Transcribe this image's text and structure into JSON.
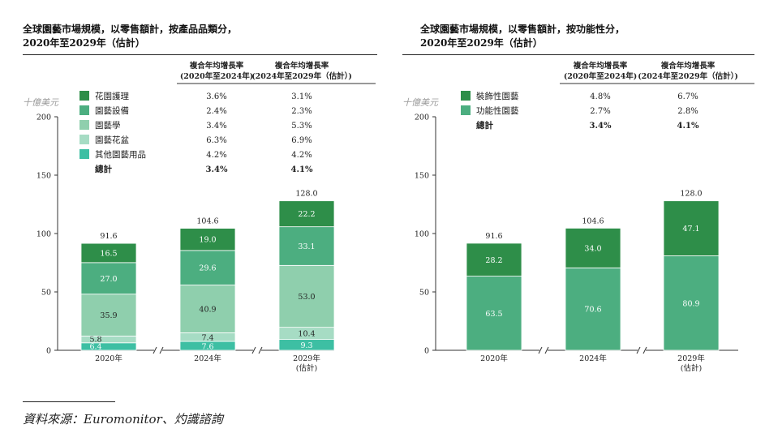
{
  "source_note": "資料來源：Euromonitor、灼識諮詢",
  "chart_data": [
    {
      "type": "bar",
      "stacked": true,
      "title_lines": [
        "全球園藝市場規模，以零售額計，按產品品類分，",
        "2020年至2029年（估計）"
      ],
      "unit_label": "十億美元",
      "y_ticks": [
        "0",
        "50",
        "100",
        "150",
        "200"
      ],
      "ylim": [
        0,
        200
      ],
      "categories": [
        "2020年",
        "2024年",
        "2029年"
      ],
      "category_sublabels": [
        "",
        "",
        "(估計)"
      ],
      "cagr_headers": [
        {
          "line1": "複合年均增長率",
          "line2": "(2020年至2024年)"
        },
        {
          "line1": "複合年均增長率",
          "line2": "(2024年至2029年（估計）)"
        }
      ],
      "series": [
        {
          "name": "其他園藝用品",
          "color": "#3dbfa3",
          "values": [
            6.4,
            7.6,
            9.3
          ],
          "cagr": [
            "4.2%",
            "4.2%"
          ]
        },
        {
          "name": "園藝花盆",
          "color": "#a6dcc4",
          "values": [
            5.8,
            7.4,
            10.4
          ],
          "cagr": [
            "6.3%",
            "6.9%"
          ]
        },
        {
          "name": "園藝學",
          "color": "#8fcfad",
          "values": [
            35.9,
            40.9,
            53.0
          ],
          "cagr": [
            "3.4%",
            "5.3%"
          ]
        },
        {
          "name": "園藝設備",
          "color": "#4cae80",
          "values": [
            27.0,
            29.6,
            33.1
          ],
          "cagr": [
            "2.4%",
            "2.3%"
          ]
        },
        {
          "name": "花園護理",
          "color": "#2e8e49",
          "values": [
            16.5,
            19.0,
            22.2
          ],
          "cagr": [
            "3.6%",
            "3.1%"
          ]
        }
      ],
      "legend_order": [
        "花園護理",
        "園藝設備",
        "園藝學",
        "園藝花盆",
        "其他園藝用品"
      ],
      "total_label": "總計",
      "total_cagr": [
        "3.4%",
        "4.1%"
      ],
      "totals": [
        "91.6",
        "104.6",
        "128.0"
      ]
    },
    {
      "type": "bar",
      "stacked": true,
      "title_lines": [
        "全球園藝市場規模，以零售額計，按功能性分，",
        "2020年至2029年（估計）"
      ],
      "unit_label": "十億美元",
      "y_ticks": [
        "0",
        "50",
        "100",
        "150",
        "200"
      ],
      "ylim": [
        0,
        200
      ],
      "categories": [
        "2020年",
        "2024年",
        "2029年"
      ],
      "category_sublabels": [
        "",
        "",
        "(估計)"
      ],
      "cagr_headers": [
        {
          "line1": "複合年均增長率",
          "line2": "(2020年至2024年)"
        },
        {
          "line1": "複合年均增長率",
          "line2": "(2024年至2029年（估計）)"
        }
      ],
      "series": [
        {
          "name": "功能性園藝",
          "color": "#4cae80",
          "values": [
            63.5,
            70.6,
            80.9
          ],
          "cagr": [
            "2.7%",
            "2.8%"
          ]
        },
        {
          "name": "裝飾性園藝",
          "color": "#2e8e49",
          "values": [
            28.2,
            34.0,
            47.1
          ],
          "cagr": [
            "4.8%",
            "6.7%"
          ]
        }
      ],
      "legend_order": [
        "裝飾性園藝",
        "功能性園藝"
      ],
      "total_label": "總計",
      "total_cagr": [
        "3.4%",
        "4.1%"
      ],
      "totals": [
        "91.6",
        "104.6",
        "128.0"
      ]
    }
  ]
}
